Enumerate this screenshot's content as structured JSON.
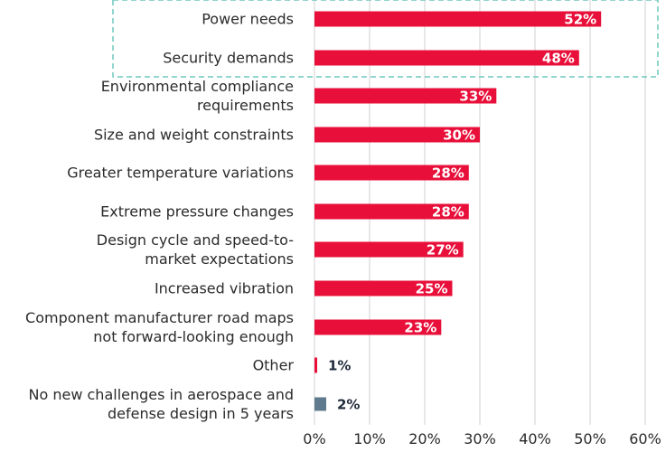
{
  "chart_data": {
    "type": "bar",
    "orientation": "horizontal",
    "categories": [
      [
        "Power needs"
      ],
      [
        "Security demands"
      ],
      [
        "Environmental compliance",
        "requirements"
      ],
      [
        "Size and weight constraints"
      ],
      [
        "Greater temperature variations"
      ],
      [
        "Extreme pressure changes"
      ],
      [
        "Design cycle and speed-to-",
        "market expectations"
      ],
      [
        "Increased vibration"
      ],
      [
        "Component manufacturer road maps",
        "not forward-looking enough"
      ],
      [
        "Other"
      ],
      [
        "No new challenges in aerospace and",
        "defense design in 5 years"
      ]
    ],
    "values": [
      52,
      48,
      33,
      30,
      28,
      28,
      27,
      25,
      23,
      1,
      2
    ],
    "value_labels": [
      "52%",
      "48%",
      "33%",
      "30%",
      "28%",
      "28%",
      "27%",
      "25%",
      "23%",
      "1%",
      "2%"
    ],
    "xlim": [
      0,
      60
    ],
    "xticks": [
      0,
      10,
      20,
      30,
      40,
      50,
      60
    ],
    "xtick_labels": [
      "0%",
      "10%",
      "20%",
      "30%",
      "40%",
      "50%",
      "60%"
    ],
    "grid": "vertical",
    "highlighted_categories": [
      "Power needs",
      "Security demands"
    ],
    "bar_colors": [
      "#e8103a",
      "#e8103a",
      "#e8103a",
      "#e8103a",
      "#e8103a",
      "#e8103a",
      "#e8103a",
      "#e8103a",
      "#e8103a",
      "#e8103a",
      "#5e7a8c"
    ],
    "highlight_color": "#6ec9bd",
    "grid_color": "#d9d9d9",
    "title": "",
    "xlabel": "",
    "ylabel": ""
  }
}
